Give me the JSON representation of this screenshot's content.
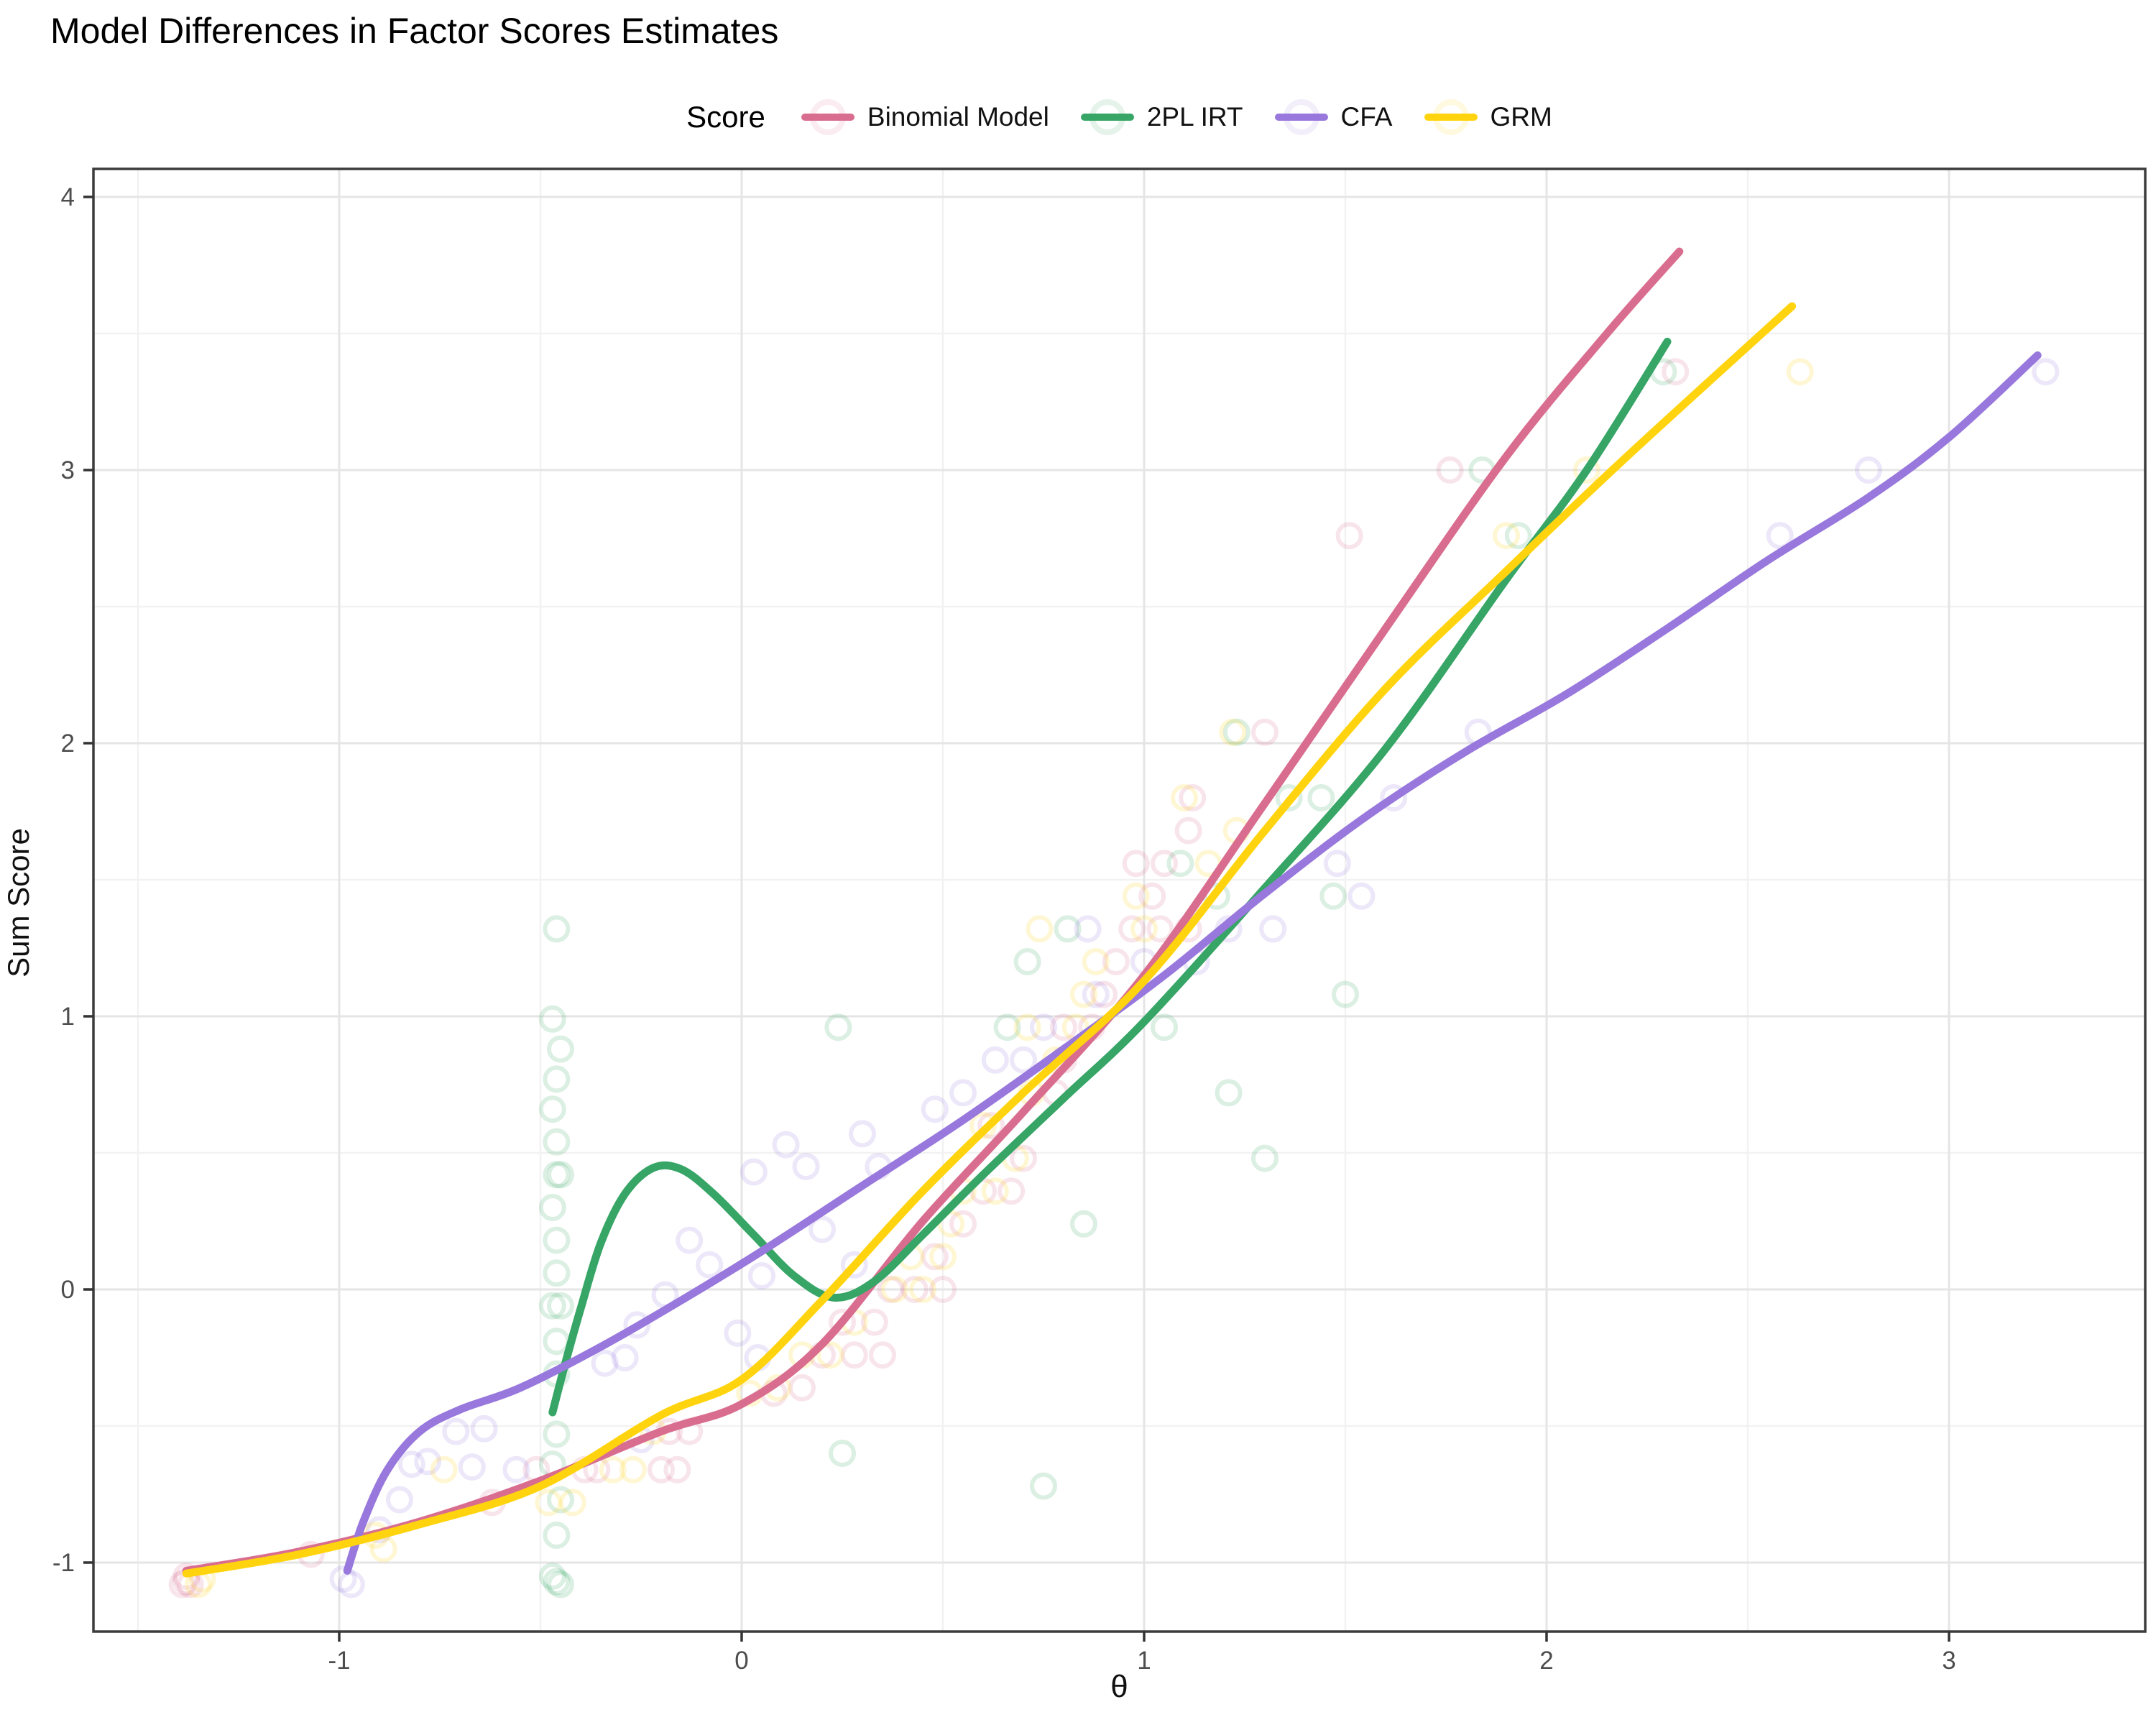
{
  "title": "Model Differences in Factor Scores Estimates",
  "legend": {
    "title": "Score"
  },
  "axes": {
    "x_label": "θ",
    "y_label": "Sum Score",
    "x_ticks": [
      -1,
      0,
      1,
      2,
      3
    ],
    "x_minor_ticks": [
      -1.5,
      -0.5,
      0.5,
      1.5,
      2.5
    ],
    "y_ticks": [
      -1,
      0,
      1,
      2,
      3,
      4
    ],
    "y_minor_ticks": [
      -0.5,
      0.5,
      1.5,
      2.5,
      3.5
    ]
  },
  "style": {
    "major_grid_color": "#e5e5e5",
    "minor_grid_color": "#f2f2f2",
    "panel_border_color": "#3c3c3c",
    "tick_color": "#333333",
    "point_opacity": 0.18,
    "point_radius": 16,
    "point_stroke": 6,
    "line_width": 11
  },
  "chart_data": {
    "type": "scatter",
    "title": "Model Differences in Factor Scores Estimates",
    "xlabel": "θ",
    "ylabel": "Sum Score",
    "xlim": [
      -1.62,
      3.47
    ],
    "ylim": [
      -1.25,
      4.1
    ],
    "grid": true,
    "legend_position": "top-center",
    "series": [
      {
        "name": "Binomial Model",
        "color": "#d96d8f",
        "points": [
          [
            -1.39,
            -1.08
          ],
          [
            -1.37,
            -1.08
          ],
          [
            -1.38,
            -1.07
          ],
          [
            -1.38,
            -1.05
          ],
          [
            -1.07,
            -0.97
          ],
          [
            -0.62,
            -0.78
          ],
          [
            -0.51,
            -0.66
          ],
          [
            -0.39,
            -0.66
          ],
          [
            -0.36,
            -0.66
          ],
          [
            -0.2,
            -0.66
          ],
          [
            -0.16,
            -0.66
          ],
          [
            -0.18,
            -0.52
          ],
          [
            -0.13,
            -0.52
          ],
          [
            0.08,
            -0.38
          ],
          [
            0.15,
            -0.36
          ],
          [
            0.2,
            -0.24
          ],
          [
            0.28,
            -0.24
          ],
          [
            0.35,
            -0.24
          ],
          [
            0.25,
            -0.12
          ],
          [
            0.33,
            -0.12
          ],
          [
            0.37,
            0.0
          ],
          [
            0.43,
            0.0
          ],
          [
            0.5,
            0.0
          ],
          [
            0.48,
            0.12
          ],
          [
            0.55,
            0.24
          ],
          [
            0.6,
            0.36
          ],
          [
            0.67,
            0.36
          ],
          [
            0.7,
            0.48
          ],
          [
            0.62,
            0.6
          ],
          [
            0.78,
            0.72
          ],
          [
            0.8,
            0.84
          ],
          [
            0.8,
            0.96
          ],
          [
            0.87,
            0.96
          ],
          [
            0.9,
            1.08
          ],
          [
            0.93,
            1.2
          ],
          [
            0.97,
            1.32
          ],
          [
            1.04,
            1.32
          ],
          [
            1.11,
            1.32
          ],
          [
            1.02,
            1.44
          ],
          [
            0.98,
            1.56
          ],
          [
            1.05,
            1.56
          ],
          [
            1.11,
            1.68
          ],
          [
            1.12,
            1.8
          ],
          [
            1.3,
            2.04
          ],
          [
            1.51,
            2.76
          ],
          [
            1.76,
            3.0
          ],
          [
            2.32,
            3.36
          ]
        ],
        "smooth": [
          [
            -1.38,
            -1.03
          ],
          [
            -1.1,
            -0.96
          ],
          [
            -0.8,
            -0.85
          ],
          [
            -0.5,
            -0.7
          ],
          [
            -0.2,
            -0.52
          ],
          [
            0.0,
            -0.42
          ],
          [
            0.2,
            -0.2
          ],
          [
            0.45,
            0.25
          ],
          [
            0.7,
            0.65
          ],
          [
            1.0,
            1.15
          ],
          [
            1.3,
            1.78
          ],
          [
            1.6,
            2.42
          ],
          [
            1.9,
            3.05
          ],
          [
            2.15,
            3.5
          ],
          [
            2.33,
            3.8
          ]
        ]
      },
      {
        "name": "2PL IRT",
        "color": "#36a566",
        "points": [
          [
            -0.46,
            1.32
          ],
          [
            -0.47,
            0.99
          ],
          [
            -0.45,
            0.88
          ],
          [
            -0.46,
            0.77
          ],
          [
            -0.47,
            0.66
          ],
          [
            -0.46,
            0.54
          ],
          [
            -0.46,
            0.42
          ],
          [
            -0.45,
            0.42
          ],
          [
            -0.47,
            0.3
          ],
          [
            -0.46,
            0.18
          ],
          [
            -0.46,
            0.06
          ],
          [
            -0.45,
            -0.06
          ],
          [
            -0.47,
            -0.06
          ],
          [
            -0.46,
            -0.19
          ],
          [
            -0.46,
            -0.31
          ],
          [
            -0.46,
            -0.53
          ],
          [
            -0.47,
            -0.64
          ],
          [
            -0.45,
            -0.77
          ],
          [
            -0.46,
            -0.9
          ],
          [
            -0.46,
            -1.07
          ],
          [
            -0.47,
            -1.05
          ],
          [
            -0.45,
            -1.08
          ],
          [
            0.24,
            0.96
          ],
          [
            0.25,
            -0.6
          ],
          [
            0.75,
            -0.72
          ],
          [
            0.66,
            0.96
          ],
          [
            0.71,
            1.2
          ],
          [
            0.81,
            1.32
          ],
          [
            0.85,
            0.24
          ],
          [
            1.05,
            0.96
          ],
          [
            1.09,
            1.56
          ],
          [
            1.21,
            0.72
          ],
          [
            1.3,
            0.48
          ],
          [
            1.18,
            1.44
          ],
          [
            1.47,
            1.44
          ],
          [
            1.5,
            1.08
          ],
          [
            1.23,
            2.04
          ],
          [
            1.36,
            1.8
          ],
          [
            1.44,
            1.8
          ],
          [
            1.84,
            3.0
          ],
          [
            1.93,
            2.76
          ],
          [
            2.29,
            3.36
          ]
        ],
        "smooth": [
          [
            -0.47,
            -0.45
          ],
          [
            -0.44,
            -0.28
          ],
          [
            -0.4,
            -0.07
          ],
          [
            -0.35,
            0.17
          ],
          [
            -0.29,
            0.35
          ],
          [
            -0.22,
            0.445
          ],
          [
            -0.15,
            0.44
          ],
          [
            -0.07,
            0.35
          ],
          [
            0.03,
            0.2
          ],
          [
            0.13,
            0.05
          ],
          [
            0.23,
            -0.03
          ],
          [
            0.33,
            0.03
          ],
          [
            0.45,
            0.2
          ],
          [
            0.6,
            0.42
          ],
          [
            0.8,
            0.7
          ],
          [
            1.0,
            0.98
          ],
          [
            1.3,
            1.47
          ],
          [
            1.6,
            1.98
          ],
          [
            1.9,
            2.6
          ],
          [
            2.1,
            3.0
          ],
          [
            2.3,
            3.47
          ]
        ]
      },
      {
        "name": "CFA",
        "color": "#9878dc",
        "points": [
          [
            -0.97,
            -1.08
          ],
          [
            -0.99,
            -1.06
          ],
          [
            -0.9,
            -0.88
          ],
          [
            -0.85,
            -0.77
          ],
          [
            -0.82,
            -0.64
          ],
          [
            -0.78,
            -0.63
          ],
          [
            -0.71,
            -0.52
          ],
          [
            -0.67,
            -0.65
          ],
          [
            -0.64,
            -0.51
          ],
          [
            -0.56,
            -0.66
          ],
          [
            -0.34,
            -0.27
          ],
          [
            -0.29,
            -0.25
          ],
          [
            -0.26,
            -0.13
          ],
          [
            -0.25,
            -0.55
          ],
          [
            -0.19,
            -0.02
          ],
          [
            -0.13,
            0.18
          ],
          [
            -0.08,
            0.09
          ],
          [
            -0.01,
            -0.16
          ],
          [
            0.04,
            -0.25
          ],
          [
            0.03,
            0.43
          ],
          [
            0.05,
            0.05
          ],
          [
            0.11,
            0.53
          ],
          [
            0.16,
            0.45
          ],
          [
            0.2,
            0.22
          ],
          [
            0.28,
            0.09
          ],
          [
            0.3,
            0.57
          ],
          [
            0.34,
            0.45
          ],
          [
            0.48,
            0.66
          ],
          [
            0.55,
            0.72
          ],
          [
            0.63,
            0.84
          ],
          [
            0.7,
            0.84
          ],
          [
            0.75,
            0.96
          ],
          [
            0.86,
            1.32
          ],
          [
            0.88,
            1.08
          ],
          [
            1.0,
            1.2
          ],
          [
            1.13,
            1.2
          ],
          [
            1.21,
            1.32
          ],
          [
            1.32,
            1.32
          ],
          [
            1.48,
            1.56
          ],
          [
            1.54,
            1.44
          ],
          [
            1.62,
            1.8
          ],
          [
            1.83,
            2.04
          ],
          [
            2.58,
            2.76
          ],
          [
            2.8,
            3.0
          ],
          [
            3.24,
            3.36
          ]
        ],
        "smooth": [
          [
            -0.98,
            -1.03
          ],
          [
            -0.94,
            -0.85
          ],
          [
            -0.88,
            -0.66
          ],
          [
            -0.8,
            -0.52
          ],
          [
            -0.7,
            -0.44
          ],
          [
            -0.55,
            -0.36
          ],
          [
            -0.35,
            -0.21
          ],
          [
            -0.15,
            -0.04
          ],
          [
            0.05,
            0.14
          ],
          [
            0.3,
            0.38
          ],
          [
            0.55,
            0.62
          ],
          [
            0.8,
            0.88
          ],
          [
            1.05,
            1.15
          ],
          [
            1.3,
            1.45
          ],
          [
            1.55,
            1.73
          ],
          [
            1.8,
            1.97
          ],
          [
            2.05,
            2.18
          ],
          [
            2.3,
            2.42
          ],
          [
            2.55,
            2.67
          ],
          [
            2.8,
            2.9
          ],
          [
            3.0,
            3.12
          ],
          [
            3.22,
            3.42
          ]
        ]
      },
      {
        "name": "GRM",
        "color": "#ffd40e",
        "points": [
          [
            -1.35,
            -1.08
          ],
          [
            -1.34,
            -1.06
          ],
          [
            -0.91,
            -0.9
          ],
          [
            -0.89,
            -0.95
          ],
          [
            -0.74,
            -0.66
          ],
          [
            -0.48,
            -0.78
          ],
          [
            -0.42,
            -0.78
          ],
          [
            -0.32,
            -0.66
          ],
          [
            -0.27,
            -0.66
          ],
          [
            -0.22,
            -0.52
          ],
          [
            0.02,
            -0.38
          ],
          [
            0.09,
            -0.36
          ],
          [
            0.15,
            -0.24
          ],
          [
            0.22,
            -0.24
          ],
          [
            0.28,
            -0.12
          ],
          [
            0.38,
            0.0
          ],
          [
            0.45,
            0.0
          ],
          [
            0.42,
            0.12
          ],
          [
            0.5,
            0.12
          ],
          [
            0.52,
            0.24
          ],
          [
            0.55,
            0.36
          ],
          [
            0.63,
            0.36
          ],
          [
            0.68,
            0.48
          ],
          [
            0.6,
            0.6
          ],
          [
            0.72,
            0.72
          ],
          [
            0.78,
            0.84
          ],
          [
            0.71,
            0.96
          ],
          [
            0.83,
            0.96
          ],
          [
            0.85,
            1.08
          ],
          [
            0.88,
            1.2
          ],
          [
            0.74,
            1.32
          ],
          [
            1.0,
            1.32
          ],
          [
            0.98,
            1.44
          ],
          [
            1.16,
            1.56
          ],
          [
            1.23,
            1.68
          ],
          [
            1.1,
            1.8
          ],
          [
            1.22,
            2.04
          ],
          [
            1.9,
            2.76
          ],
          [
            2.1,
            3.0
          ],
          [
            2.63,
            3.36
          ]
        ],
        "smooth": [
          [
            -1.38,
            -1.04
          ],
          [
            -1.1,
            -0.97
          ],
          [
            -0.8,
            -0.86
          ],
          [
            -0.5,
            -0.72
          ],
          [
            -0.2,
            -0.46
          ],
          [
            0.0,
            -0.33
          ],
          [
            0.2,
            -0.04
          ],
          [
            0.45,
            0.36
          ],
          [
            0.7,
            0.72
          ],
          [
            1.0,
            1.13
          ],
          [
            1.3,
            1.68
          ],
          [
            1.6,
            2.2
          ],
          [
            1.9,
            2.63
          ],
          [
            2.2,
            3.05
          ],
          [
            2.61,
            3.6
          ]
        ]
      }
    ]
  }
}
